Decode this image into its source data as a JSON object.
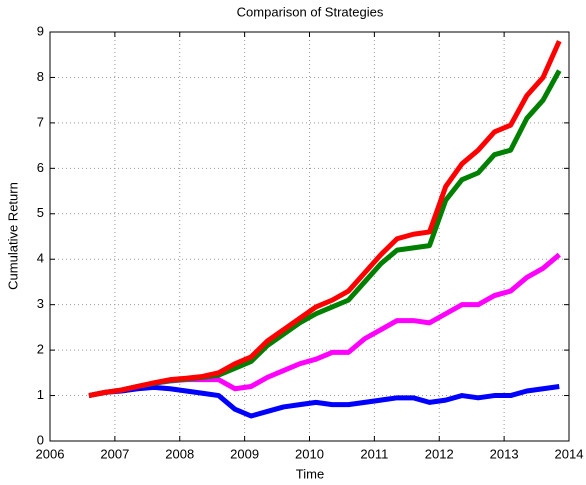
{
  "chart_data": {
    "type": "line",
    "title": "Comparison of Strategies",
    "x_label": "Time",
    "y_label": "Cumulative Return",
    "x": [
      2006.6,
      2006.85,
      2007.1,
      2007.35,
      2007.6,
      2007.85,
      2008.1,
      2008.35,
      2008.6,
      2008.85,
      2009.1,
      2009.35,
      2009.6,
      2009.85,
      2010.1,
      2010.35,
      2010.6,
      2010.85,
      2011.1,
      2011.35,
      2011.6,
      2011.85,
      2012.1,
      2012.35,
      2012.6,
      2012.85,
      2013.1,
      2013.35,
      2013.6,
      2013.85
    ],
    "series": [
      {
        "color": "#ff0000",
        "values": [
          1.0,
          1.07,
          1.12,
          1.2,
          1.28,
          1.35,
          1.38,
          1.42,
          1.5,
          1.7,
          1.85,
          2.2,
          2.45,
          2.7,
          2.95,
          3.1,
          3.3,
          3.7,
          4.1,
          4.45,
          4.55,
          4.6,
          5.6,
          6.1,
          6.4,
          6.8,
          6.95,
          7.6,
          8.0,
          8.8
        ]
      },
      {
        "color": "#008000",
        "values": [
          1.0,
          1.07,
          1.12,
          1.2,
          1.27,
          1.33,
          1.36,
          1.4,
          1.45,
          1.6,
          1.75,
          2.1,
          2.35,
          2.6,
          2.8,
          2.95,
          3.1,
          3.5,
          3.9,
          4.2,
          4.25,
          4.3,
          5.3,
          5.75,
          5.9,
          6.3,
          6.4,
          7.1,
          7.5,
          8.15
        ]
      },
      {
        "color": "#ff00ff",
        "values": [
          1.0,
          1.07,
          1.12,
          1.2,
          1.27,
          1.32,
          1.35,
          1.35,
          1.35,
          1.15,
          1.2,
          1.4,
          1.55,
          1.7,
          1.8,
          1.95,
          1.95,
          2.25,
          2.45,
          2.65,
          2.65,
          2.6,
          2.8,
          3.0,
          3.0,
          3.2,
          3.3,
          3.6,
          3.8,
          4.1
        ]
      },
      {
        "color": "#0000ff",
        "values": [
          1.0,
          1.07,
          1.1,
          1.15,
          1.18,
          1.15,
          1.1,
          1.05,
          1.0,
          0.7,
          0.55,
          0.65,
          0.75,
          0.8,
          0.85,
          0.8,
          0.8,
          0.85,
          0.9,
          0.95,
          0.95,
          0.85,
          0.9,
          1.0,
          0.95,
          1.0,
          1.0,
          1.1,
          1.15,
          1.2
        ]
      }
    ],
    "xlim": [
      2006,
      2014
    ],
    "xticks": [
      2006,
      2007,
      2008,
      2009,
      2010,
      2011,
      2012,
      2013,
      2014
    ],
    "ylim": [
      0,
      9
    ],
    "yticks": [
      0,
      1,
      2,
      3,
      4,
      5,
      6,
      7,
      8,
      9
    ],
    "grid": true
  }
}
